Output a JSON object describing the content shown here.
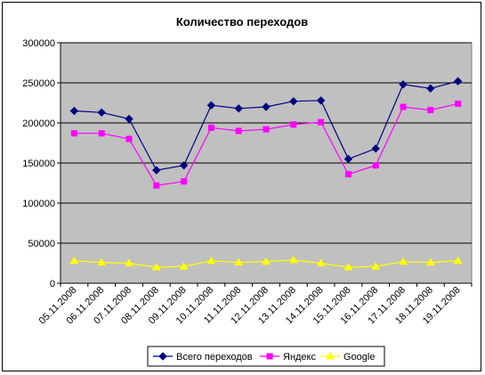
{
  "chart_data": {
    "type": "line",
    "title": "Количество переходов",
    "xlabel": "",
    "ylabel": "",
    "categories": [
      "05.11.2008",
      "06.11.2008",
      "07.11.2008",
      "08.11.2008",
      "09.11.2008",
      "10.11.2008",
      "11.11.2008",
      "12.11.2008",
      "13.11.2008",
      "14.11.2008",
      "15.11.2008",
      "16.11.2008",
      "17.11.2008",
      "18.11.2008",
      "19.11.2008"
    ],
    "ylim": [
      0,
      300000
    ],
    "yticks": [
      0,
      50000,
      100000,
      150000,
      200000,
      250000,
      300000
    ],
    "ytick_labels": [
      "0",
      "50000",
      "100000",
      "150000",
      "200000",
      "250000",
      "300000"
    ],
    "grid": true,
    "plot_background": "#c0c0c0",
    "legend_position": "bottom",
    "series": [
      {
        "name": "Всего переходов",
        "color": "#000080",
        "marker": "diamond",
        "values": [
          215000,
          213000,
          205000,
          141000,
          147000,
          222000,
          218000,
          220000,
          227000,
          228000,
          155000,
          168000,
          248000,
          243000,
          252000
        ]
      },
      {
        "name": "Яндекс",
        "color": "#ff00ff",
        "marker": "square",
        "values": [
          187000,
          187000,
          180000,
          122000,
          127000,
          194000,
          190000,
          192000,
          198000,
          201000,
          136000,
          147000,
          220000,
          216000,
          224000
        ]
      },
      {
        "name": "Google",
        "color": "#ffff00",
        "marker": "triangle",
        "values": [
          28000,
          26000,
          25000,
          20000,
          21000,
          28000,
          26000,
          27000,
          29000,
          25000,
          20000,
          21000,
          27000,
          26000,
          28000
        ]
      }
    ]
  }
}
